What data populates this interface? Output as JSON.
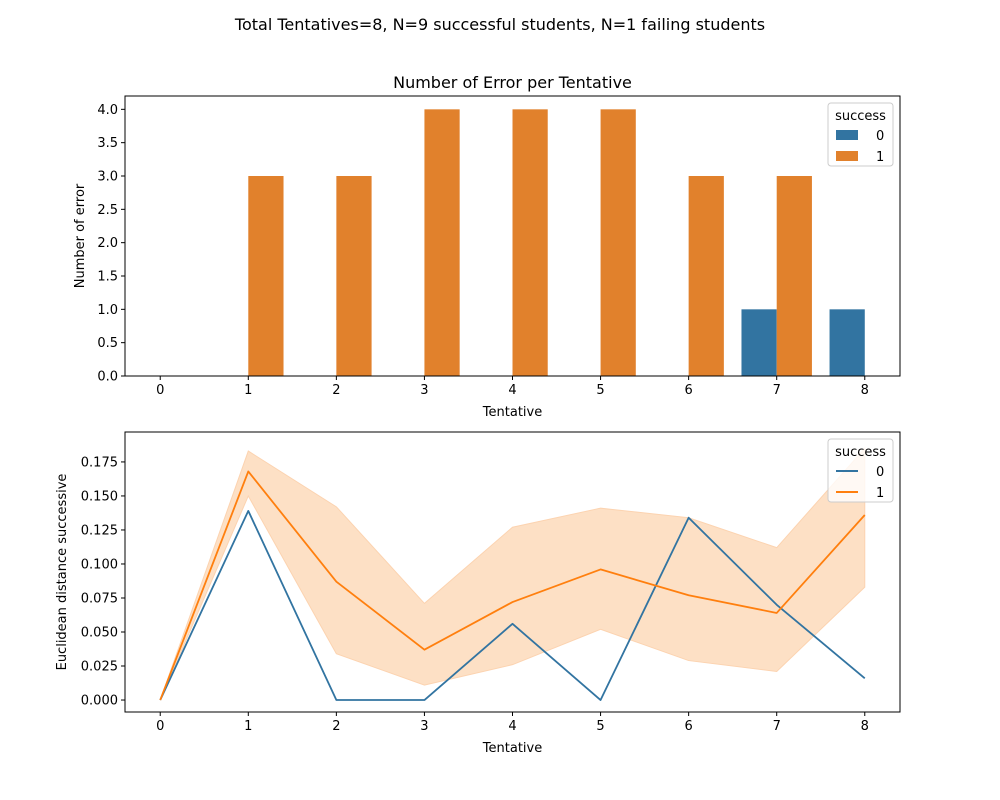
{
  "suptitle": "Total Tentatives=8, N=9 successful students, N=1 failing students",
  "colors": {
    "s0": "#3274a1",
    "s1": "#e1812c",
    "band": "#fde0c5"
  },
  "chart_data": [
    {
      "type": "bar",
      "title": "Number of Error per Tentative",
      "xlabel": "Tentative",
      "ylabel": "Number of error",
      "categories": [
        "0",
        "1",
        "2",
        "3",
        "4",
        "5",
        "6",
        "7",
        "8"
      ],
      "ylim": [
        0,
        4.2
      ],
      "yticks": [
        "0.0",
        "0.5",
        "1.0",
        "1.5",
        "2.0",
        "2.5",
        "3.0",
        "3.5",
        "4.0"
      ],
      "series": [
        {
          "name": "0",
          "values": [
            0,
            0,
            0,
            0,
            0,
            0,
            0,
            1,
            1
          ]
        },
        {
          "name": "1",
          "values": [
            0,
            3,
            3,
            4,
            4,
            4,
            3,
            3,
            0
          ]
        }
      ],
      "legend": {
        "title": "success",
        "placement": "top-right"
      }
    },
    {
      "type": "line",
      "xlabel": "Tentative",
      "ylabel": "Euclidean distance successive",
      "x": [
        0,
        1,
        2,
        3,
        4,
        5,
        6,
        7,
        8
      ],
      "xticks": [
        "0",
        "1",
        "2",
        "3",
        "4",
        "5",
        "6",
        "7",
        "8"
      ],
      "ylim": [
        -0.0088,
        0.197
      ],
      "yticks": [
        "0.000",
        "0.025",
        "0.050",
        "0.075",
        "0.100",
        "0.125",
        "0.150",
        "0.175"
      ],
      "series": [
        {
          "name": "0",
          "values": [
            0.0,
            0.139,
            0.0,
            0.0,
            0.056,
            0.0,
            0.134,
            0.07,
            0.016
          ]
        },
        {
          "name": "1",
          "values": [
            0.0,
            0.168,
            0.087,
            0.037,
            0.072,
            0.096,
            0.077,
            0.064,
            0.136
          ],
          "ci_low": [
            0.0,
            0.15,
            0.034,
            0.011,
            0.026,
            0.052,
            0.029,
            0.021,
            0.083
          ],
          "ci_high": [
            0.0,
            0.183,
            0.142,
            0.071,
            0.127,
            0.141,
            0.134,
            0.112,
            0.185
          ]
        }
      ],
      "legend": {
        "title": "success",
        "placement": "top-right"
      }
    }
  ]
}
